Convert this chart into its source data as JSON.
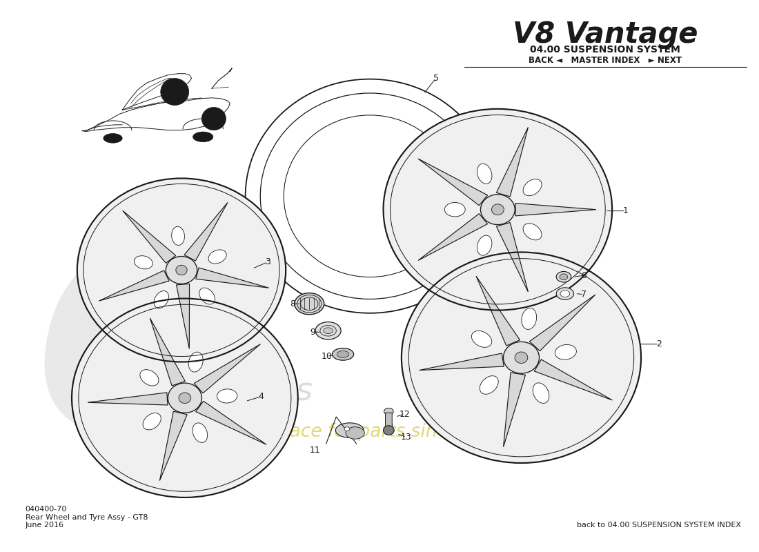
{
  "title_main": "V8 Vantage",
  "title_sub": "04.00 SUSPENSION SYSTEM",
  "nav_text": "BACK ◄   MASTER INDEX   ► NEXT",
  "bottom_code": "040400-70",
  "bottom_desc": "Rear Wheel and Tyre Assy - GT8",
  "bottom_date": "June 2016",
  "bottom_right": "back to 04.00 SUSPENSION SYSTEM INDEX",
  "bg_color": "#ffffff",
  "line_color": "#1a1a1a",
  "fig_w": 11.0,
  "fig_h": 8.0,
  "dpi": 100
}
